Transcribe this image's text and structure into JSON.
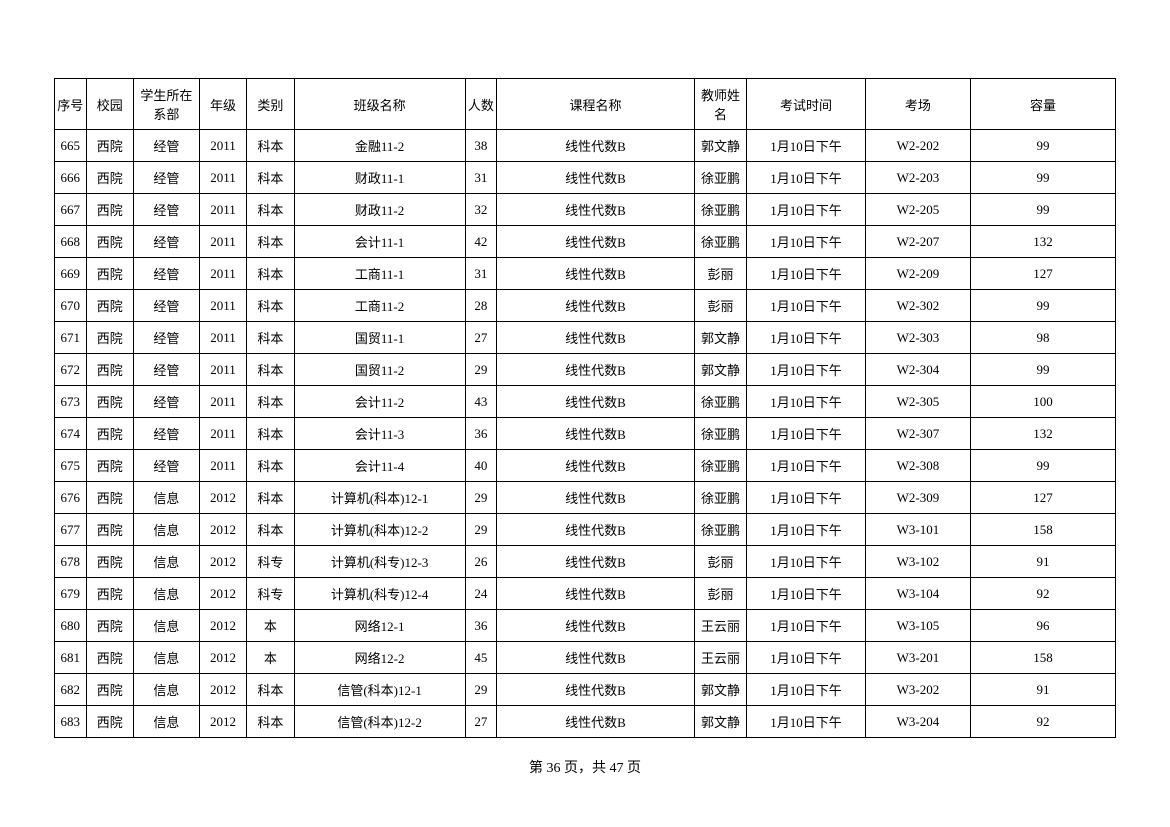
{
  "table": {
    "columns": [
      "序号",
      "校园",
      "学生所在系部",
      "年级",
      "类别",
      "班级名称",
      "人数",
      "课程名称",
      "教师姓名",
      "考试时间",
      "考场",
      "容量"
    ],
    "rows": [
      [
        "665",
        "西院",
        "经管",
        "2011",
        "科本",
        "金融11-2",
        "38",
        "线性代数B",
        "郭文静",
        "1月10日下午",
        "W2-202",
        "99"
      ],
      [
        "666",
        "西院",
        "经管",
        "2011",
        "科本",
        "财政11-1",
        "31",
        "线性代数B",
        "徐亚鹏",
        "1月10日下午",
        "W2-203",
        "99"
      ],
      [
        "667",
        "西院",
        "经管",
        "2011",
        "科本",
        "财政11-2",
        "32",
        "线性代数B",
        "徐亚鹏",
        "1月10日下午",
        "W2-205",
        "99"
      ],
      [
        "668",
        "西院",
        "经管",
        "2011",
        "科本",
        "会计11-1",
        "42",
        "线性代数B",
        "徐亚鹏",
        "1月10日下午",
        "W2-207",
        "132"
      ],
      [
        "669",
        "西院",
        "经管",
        "2011",
        "科本",
        "工商11-1",
        "31",
        "线性代数B",
        "彭丽",
        "1月10日下午",
        "W2-209",
        "127"
      ],
      [
        "670",
        "西院",
        "经管",
        "2011",
        "科本",
        "工商11-2",
        "28",
        "线性代数B",
        "彭丽",
        "1月10日下午",
        "W2-302",
        "99"
      ],
      [
        "671",
        "西院",
        "经管",
        "2011",
        "科本",
        "国贸11-1",
        "27",
        "线性代数B",
        "郭文静",
        "1月10日下午",
        "W2-303",
        "98"
      ],
      [
        "672",
        "西院",
        "经管",
        "2011",
        "科本",
        "国贸11-2",
        "29",
        "线性代数B",
        "郭文静",
        "1月10日下午",
        "W2-304",
        "99"
      ],
      [
        "673",
        "西院",
        "经管",
        "2011",
        "科本",
        "会计11-2",
        "43",
        "线性代数B",
        "徐亚鹏",
        "1月10日下午",
        "W2-305",
        "100"
      ],
      [
        "674",
        "西院",
        "经管",
        "2011",
        "科本",
        "会计11-3",
        "36",
        "线性代数B",
        "徐亚鹏",
        "1月10日下午",
        "W2-307",
        "132"
      ],
      [
        "675",
        "西院",
        "经管",
        "2011",
        "科本",
        "会计11-4",
        "40",
        "线性代数B",
        "徐亚鹏",
        "1月10日下午",
        "W2-308",
        "99"
      ],
      [
        "676",
        "西院",
        "信息",
        "2012",
        "科本",
        "计算机(科本)12-1",
        "29",
        "线性代数B",
        "徐亚鹏",
        "1月10日下午",
        "W2-309",
        "127"
      ],
      [
        "677",
        "西院",
        "信息",
        "2012",
        "科本",
        "计算机(科本)12-2",
        "29",
        "线性代数B",
        "徐亚鹏",
        "1月10日下午",
        "W3-101",
        "158"
      ],
      [
        "678",
        "西院",
        "信息",
        "2012",
        "科专",
        "计算机(科专)12-3",
        "26",
        "线性代数B",
        "彭丽",
        "1月10日下午",
        "W3-102",
        "91"
      ],
      [
        "679",
        "西院",
        "信息",
        "2012",
        "科专",
        "计算机(科专)12-4",
        "24",
        "线性代数B",
        "彭丽",
        "1月10日下午",
        "W3-104",
        "92"
      ],
      [
        "680",
        "西院",
        "信息",
        "2012",
        "本",
        "网络12-1",
        "36",
        "线性代数B",
        "王云丽",
        "1月10日下午",
        "W3-105",
        "96"
      ],
      [
        "681",
        "西院",
        "信息",
        "2012",
        "本",
        "网络12-2",
        "45",
        "线性代数B",
        "王云丽",
        "1月10日下午",
        "W3-201",
        "158"
      ],
      [
        "682",
        "西院",
        "信息",
        "2012",
        "科本",
        "信管(科本)12-1",
        "29",
        "线性代数B",
        "郭文静",
        "1月10日下午",
        "W3-202",
        "91"
      ],
      [
        "683",
        "西院",
        "信息",
        "2012",
        "科本",
        "信管(科本)12-2",
        "27",
        "线性代数B",
        "郭文静",
        "1月10日下午",
        "W3-204",
        "92"
      ]
    ]
  },
  "footer": {
    "text": "第 36 页，共 47 页"
  }
}
